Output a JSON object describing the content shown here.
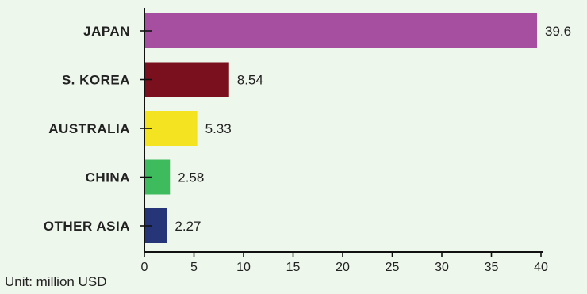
{
  "chart_data": {
    "type": "bar",
    "orientation": "horizontal",
    "categories": [
      "JAPAN",
      "S. KOREA",
      "AUSTRALIA",
      "CHINA",
      "OTHER ASIA"
    ],
    "values": [
      39.6,
      8.54,
      5.33,
      2.58,
      2.27
    ],
    "value_labels": [
      "39.6",
      "8.54",
      "5.33",
      "2.58",
      "2.27"
    ],
    "colors": [
      "#a64fa0",
      "#7a101d",
      "#f4e321",
      "#3ebb5c",
      "#263478"
    ],
    "xlim": [
      0,
      40
    ],
    "xticks": [
      0,
      5,
      10,
      15,
      20,
      25,
      30,
      35,
      40
    ],
    "note": "Unit: million USD",
    "grid": false,
    "legend": "none"
  },
  "colors": {
    "background": "#eef7ec",
    "axis": "#111111",
    "text": "#222222"
  }
}
